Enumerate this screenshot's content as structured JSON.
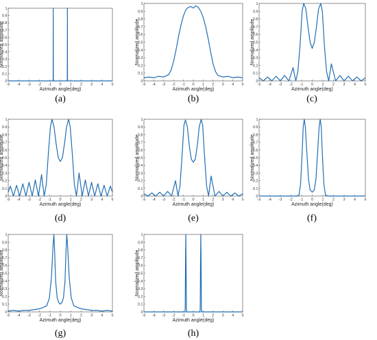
{
  "style": {
    "line_color": "#1f6db3"
  },
  "chart_data": [
    {
      "panel": "(a)",
      "type": "line",
      "xlabel": "Azimuth angle(deg)",
      "ylabel": "Normalized amplitude",
      "xlim": [
        -5,
        5
      ],
      "ylim": [
        0,
        1
      ],
      "xticks": [
        "-5",
        "-4",
        "-3",
        "-2",
        "-1",
        "0",
        "1",
        "2",
        "3",
        "4",
        "5"
      ],
      "yticks": [
        "0",
        "0.1",
        "0.2",
        "0.3",
        "0.4",
        "0.5",
        "0.6",
        "0.7",
        "0.8",
        "0.9",
        "1"
      ],
      "x": [
        -5,
        -0.72,
        -0.69,
        -0.68,
        -0.67,
        -0.64,
        0.64,
        0.67,
        0.68,
        0.69,
        0.72,
        5
      ],
      "y": [
        0,
        0,
        0.02,
        1.0,
        0.02,
        0,
        0,
        0.02,
        1.0,
        0.02,
        0,
        0
      ]
    },
    {
      "panel": "(b)",
      "type": "line",
      "xlabel": "Azimuth angle(deg)",
      "ylabel": "Normalized amplitude",
      "xlim": [
        -5,
        5
      ],
      "ylim": [
        0,
        1
      ],
      "xticks": [
        "-5",
        "-4",
        "-3",
        "-2",
        "-1",
        "0",
        "1",
        "2",
        "3",
        "4",
        "5"
      ],
      "yticks": [
        "0",
        "0.1",
        "0.2",
        "0.3",
        "0.4",
        "0.5",
        "0.6",
        "0.7",
        "0.8",
        "0.9",
        "1"
      ],
      "x": [
        -5,
        -4.5,
        -4,
        -3.5,
        -3,
        -2.5,
        -2.25,
        -2,
        -1.75,
        -1.5,
        -1.25,
        -1,
        -0.75,
        -0.5,
        -0.25,
        0,
        0.25,
        0.5,
        0.75,
        1,
        1.25,
        1.5,
        1.75,
        2,
        2.25,
        2.5,
        3,
        3.5,
        4,
        4.5,
        5
      ],
      "y": [
        0.04,
        0.05,
        0.04,
        0.06,
        0.05,
        0.08,
        0.14,
        0.25,
        0.4,
        0.57,
        0.72,
        0.84,
        0.92,
        0.95,
        0.96,
        0.94,
        0.97,
        0.95,
        0.9,
        0.82,
        0.7,
        0.55,
        0.38,
        0.22,
        0.12,
        0.07,
        0.05,
        0.06,
        0.04,
        0.05,
        0.04
      ]
    },
    {
      "panel": "(c)",
      "type": "line",
      "xlabel": "Azimuth angle(deg)",
      "ylabel": "Normalized amplitude",
      "xlim": [
        -5,
        5
      ],
      "ylim": [
        0,
        1
      ],
      "xticks": [
        "-5",
        "-4",
        "-3",
        "-2",
        "-1",
        "0",
        "1",
        "2",
        "3",
        "4",
        "5"
      ],
      "yticks": [
        "0",
        "0.1",
        "0.2",
        "0.3",
        "0.4",
        "0.5",
        "0.6",
        "0.7",
        "0.8",
        "0.9",
        "1"
      ],
      "x": [
        -5,
        -4.6,
        -4.2,
        -3.8,
        -3.4,
        -3,
        -2.6,
        -2.2,
        -1.8,
        -1.55,
        -1.35,
        -1.15,
        -0.95,
        -0.8,
        -0.6,
        -0.4,
        -0.2,
        0,
        0.2,
        0.4,
        0.6,
        0.8,
        0.95,
        1.15,
        1.35,
        1.55,
        1.8,
        2.2,
        2.6,
        3,
        3.4,
        3.8,
        4.2,
        4.6,
        5
      ],
      "y": [
        0.04,
        0.0,
        0.05,
        0.0,
        0.06,
        0.0,
        0.07,
        0.0,
        0.17,
        0.0,
        0.12,
        0.45,
        0.9,
        1.0,
        0.93,
        0.7,
        0.5,
        0.42,
        0.5,
        0.7,
        0.93,
        1.0,
        0.9,
        0.45,
        0.12,
        0.0,
        0.22,
        0.0,
        0.07,
        0.0,
        0.06,
        0.0,
        0.05,
        0.0,
        0.04
      ]
    },
    {
      "panel": "(d)",
      "type": "line",
      "xlabel": "Azimuth angle(deg)",
      "ylabel": "Normalized amplitude",
      "xlim": [
        -5,
        5
      ],
      "ylim": [
        0,
        1
      ],
      "xticks": [
        "-5",
        "-4",
        "-3",
        "-2",
        "-1",
        "0",
        "1",
        "2",
        "3",
        "4",
        "5"
      ],
      "yticks": [
        "0",
        "0.1",
        "0.2",
        "0.3",
        "0.4",
        "0.5",
        "0.6",
        "0.7",
        "0.8",
        "0.9",
        "1"
      ],
      "x": [
        -5,
        -4.8,
        -4.5,
        -4.2,
        -3.9,
        -3.6,
        -3.3,
        -3,
        -2.7,
        -2.4,
        -2.1,
        -1.8,
        -1.55,
        -1.35,
        -1.15,
        -0.95,
        -0.8,
        -0.6,
        -0.4,
        -0.2,
        0,
        0.2,
        0.4,
        0.6,
        0.8,
        0.95,
        1.15,
        1.35,
        1.55,
        1.8,
        2.1,
        2.4,
        2.7,
        3,
        3.3,
        3.6,
        3.9,
        4.2,
        4.5,
        4.8,
        5
      ],
      "y": [
        0.05,
        0.13,
        0.0,
        0.14,
        0.0,
        0.16,
        0.0,
        0.18,
        0.0,
        0.21,
        0.0,
        0.28,
        0.0,
        0.15,
        0.55,
        0.9,
        1.0,
        0.9,
        0.68,
        0.5,
        0.45,
        0.5,
        0.68,
        0.9,
        1.0,
        0.9,
        0.55,
        0.15,
        0.0,
        0.3,
        0.0,
        0.21,
        0.0,
        0.18,
        0.0,
        0.16,
        0.0,
        0.14,
        0.0,
        0.13,
        0.05
      ]
    },
    {
      "panel": "(e)",
      "type": "line",
      "xlabel": "Azimuth angle(deg)",
      "ylabel": "Normalized amplitude",
      "xlim": [
        -5,
        5
      ],
      "ylim": [
        0,
        1
      ],
      "xticks": [
        "-5",
        "-4",
        "-3",
        "-2",
        "-1",
        "0",
        "1",
        "2",
        "3",
        "4",
        "5"
      ],
      "yticks": [
        "0",
        "0.1",
        "0.2",
        "0.3",
        "0.4",
        "0.5",
        "0.6",
        "0.7",
        "0.8",
        "0.9",
        "1"
      ],
      "x": [
        -5,
        -4.6,
        -4.2,
        -3.8,
        -3.4,
        -3,
        -2.6,
        -2.2,
        -1.8,
        -1.55,
        -1.35,
        -1.15,
        -0.95,
        -0.8,
        -0.6,
        -0.4,
        -0.2,
        0,
        0.2,
        0.4,
        0.6,
        0.8,
        0.95,
        1.15,
        1.35,
        1.55,
        1.8,
        2.2,
        2.6,
        3,
        3.4,
        3.8,
        4.2,
        4.6,
        5
      ],
      "y": [
        0.03,
        0.0,
        0.04,
        0.0,
        0.05,
        0.0,
        0.06,
        0.0,
        0.2,
        0.0,
        0.13,
        0.5,
        0.92,
        0.99,
        0.9,
        0.65,
        0.48,
        0.44,
        0.48,
        0.65,
        0.9,
        1.0,
        0.92,
        0.5,
        0.13,
        0.0,
        0.26,
        0.0,
        0.06,
        0.0,
        0.05,
        0.0,
        0.04,
        0.0,
        0.03
      ]
    },
    {
      "panel": "(f)",
      "type": "line",
      "xlabel": "Azimuth angle(deg)",
      "ylabel": "Normalized amplitude",
      "xlim": [
        -5,
        5
      ],
      "ylim": [
        0,
        1
      ],
      "xticks": [
        "-5",
        "-4",
        "-3",
        "-2",
        "-1",
        "0",
        "1",
        "2",
        "3",
        "4",
        "5"
      ],
      "yticks": [
        "0",
        "0.1",
        "0.2",
        "0.3",
        "0.4",
        "0.5",
        "0.6",
        "0.7",
        "0.8",
        "0.9",
        "1"
      ],
      "x": [
        -5,
        -1.5,
        -1.25,
        -1.1,
        -0.95,
        -0.85,
        -0.75,
        -0.65,
        -0.5,
        -0.35,
        -0.2,
        0,
        0.2,
        0.35,
        0.5,
        0.65,
        0.75,
        0.85,
        0.95,
        1.1,
        1.25,
        1.5,
        5
      ],
      "y": [
        0,
        0,
        0.01,
        0.15,
        0.55,
        0.9,
        1.0,
        0.9,
        0.55,
        0.22,
        0.08,
        0.05,
        0.08,
        0.22,
        0.55,
        0.9,
        1.0,
        0.9,
        0.55,
        0.15,
        0.01,
        0,
        0
      ]
    },
    {
      "panel": "(g)",
      "type": "line",
      "xlabel": "Azimuth angle(deg)",
      "ylabel": "Normalized amplitude",
      "xlim": [
        -5,
        5
      ],
      "ylim": [
        0,
        1
      ],
      "xticks": [
        "-5",
        "-4",
        "-3",
        "-2",
        "-1",
        "0",
        "1",
        "2",
        "3",
        "4",
        "5"
      ],
      "yticks": [
        "0",
        "0.1",
        "0.2",
        "0.3",
        "0.4",
        "0.5",
        "0.6",
        "0.7",
        "0.8",
        "0.9",
        "1"
      ],
      "x": [
        -5,
        -4.5,
        -4,
        -3.5,
        -3,
        -2.5,
        -2,
        -1.6,
        -1.3,
        -1.05,
        -0.85,
        -0.7,
        -0.62,
        -0.55,
        -0.45,
        -0.3,
        -0.15,
        0,
        0.15,
        0.3,
        0.45,
        0.55,
        0.62,
        0.7,
        0.85,
        1.05,
        1.3,
        1.6,
        2,
        2.5,
        3,
        3.5,
        4,
        4.5,
        5
      ],
      "y": [
        0.01,
        0.02,
        0.01,
        0.02,
        0.02,
        0.03,
        0.04,
        0.06,
        0.08,
        0.18,
        0.45,
        0.85,
        1.0,
        0.8,
        0.4,
        0.18,
        0.12,
        0.1,
        0.12,
        0.18,
        0.4,
        0.8,
        1.0,
        0.85,
        0.45,
        0.18,
        0.08,
        0.06,
        0.04,
        0.03,
        0.02,
        0.02,
        0.01,
        0.02,
        0.01
      ]
    },
    {
      "panel": "(h)",
      "type": "line",
      "xlabel": "Azimuth angle(deg)",
      "ylabel": "Normalized amplitude",
      "xlim": [
        -5,
        5
      ],
      "ylim": [
        0,
        1
      ],
      "xticks": [
        "-5",
        "-4",
        "-3",
        "-2",
        "-1",
        "0",
        "1",
        "2",
        "3",
        "4",
        "5"
      ],
      "yticks": [
        "0",
        "0.1",
        "0.2",
        "0.3",
        "0.4",
        "0.5",
        "0.6",
        "0.7",
        "0.8",
        "0.9",
        "1"
      ],
      "x": [
        -5,
        -0.85,
        -0.82,
        -0.79,
        -0.76,
        -0.73,
        -0.7,
        -0.67,
        0.67,
        0.7,
        0.73,
        0.76,
        0.79,
        0.82,
        0.85,
        5
      ],
      "y": [
        0,
        0,
        0.05,
        0.6,
        1.0,
        0.6,
        0.05,
        0,
        0,
        0.05,
        0.6,
        1.0,
        0.6,
        0.05,
        0,
        0
      ]
    }
  ]
}
